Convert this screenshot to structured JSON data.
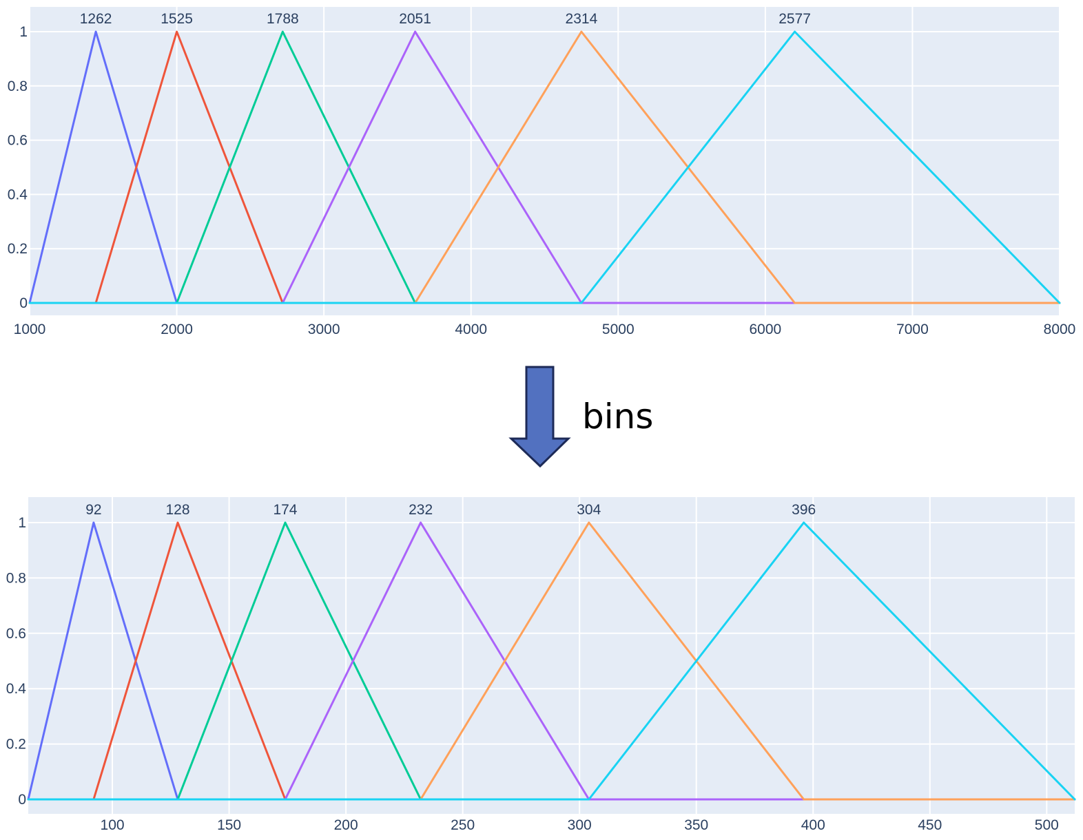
{
  "plot_bg": "#e5ecf6",
  "grid_color": "#ffffff",
  "tick_color": "#2a3f5f",
  "arrow": {
    "label": "bins",
    "fill": "#5271c0",
    "stroke": "#1d2a57"
  },
  "chart_data": [
    {
      "type": "line",
      "title": "",
      "xlabel": "",
      "ylabel": "",
      "xlim": [
        1000,
        8000
      ],
      "ylim": [
        0,
        1
      ],
      "x_ticks": [
        1000,
        2000,
        3000,
        4000,
        5000,
        6000,
        7000,
        8000
      ],
      "y_ticks": [
        0,
        0.2,
        0.4,
        0.6,
        0.8,
        1
      ],
      "y_tick_labels": [
        "0",
        "0.2",
        "0.4",
        "0.6",
        "0.8",
        "1"
      ],
      "grid": true,
      "series": [
        {
          "color": "#636efa",
          "x": [
            1000,
            1450,
            2000,
            8000
          ],
          "y": [
            0,
            1,
            0,
            0
          ],
          "peak_label": "1262"
        },
        {
          "color": "#ef553b",
          "x": [
            1000,
            1450,
            2000,
            2720,
            8000
          ],
          "y": [
            0,
            0,
            1,
            0,
            0
          ],
          "peak_label": "1525"
        },
        {
          "color": "#00cc96",
          "x": [
            1000,
            2000,
            2720,
            3620,
            8000
          ],
          "y": [
            0,
            0,
            1,
            0,
            0
          ],
          "peak_label": "1788"
        },
        {
          "color": "#ab63fa",
          "x": [
            1000,
            2720,
            3620,
            4750,
            8000
          ],
          "y": [
            0,
            0,
            1,
            0,
            0
          ],
          "peak_label": "2051"
        },
        {
          "color": "#ffa15a",
          "x": [
            1000,
            3620,
            4750,
            6200,
            8000
          ],
          "y": [
            0,
            0,
            1,
            0,
            0
          ],
          "peak_label": "2314"
        },
        {
          "color": "#19d3f3",
          "x": [
            1000,
            4750,
            6200,
            8000
          ],
          "y": [
            0,
            0,
            1,
            0
          ],
          "peak_label": "2577"
        }
      ]
    },
    {
      "type": "line",
      "title": "",
      "xlabel": "",
      "ylabel": "",
      "xlim": [
        64,
        512
      ],
      "ylim": [
        0,
        1
      ],
      "x_ticks": [
        100,
        150,
        200,
        250,
        300,
        350,
        400,
        450,
        500
      ],
      "y_ticks": [
        0,
        0.2,
        0.4,
        0.6,
        0.8,
        1
      ],
      "y_tick_labels": [
        "0",
        "0.2",
        "0.4",
        "0.6",
        "0.8",
        "1"
      ],
      "grid": true,
      "series": [
        {
          "color": "#636efa",
          "x": [
            64,
            92,
            128,
            512
          ],
          "y": [
            0,
            1,
            0,
            0
          ],
          "peak_label": "92"
        },
        {
          "color": "#ef553b",
          "x": [
            64,
            92,
            128,
            174,
            512
          ],
          "y": [
            0,
            0,
            1,
            0,
            0
          ],
          "peak_label": "128"
        },
        {
          "color": "#00cc96",
          "x": [
            64,
            128,
            174,
            232,
            512
          ],
          "y": [
            0,
            0,
            1,
            0,
            0
          ],
          "peak_label": "174"
        },
        {
          "color": "#ab63fa",
          "x": [
            64,
            174,
            232,
            304,
            512
          ],
          "y": [
            0,
            0,
            1,
            0,
            0
          ],
          "peak_label": "232"
        },
        {
          "color": "#ffa15a",
          "x": [
            64,
            232,
            304,
            396,
            512
          ],
          "y": [
            0,
            0,
            1,
            0,
            0
          ],
          "peak_label": "304"
        },
        {
          "color": "#19d3f3",
          "x": [
            64,
            304,
            396,
            512
          ],
          "y": [
            0,
            0,
            1,
            0
          ],
          "peak_label": "396"
        }
      ]
    }
  ]
}
